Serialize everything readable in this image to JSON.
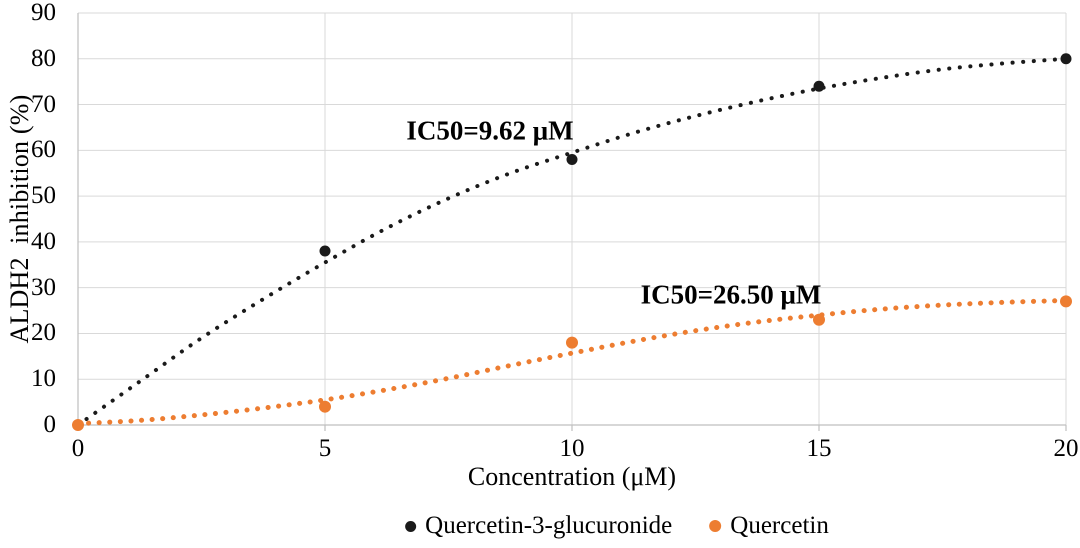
{
  "chart_data": {
    "type": "scatter",
    "title": "",
    "xlabel": "Concentration (μM)",
    "ylabel": "ALDH2  inhibition (%)",
    "xlim": [
      0,
      20
    ],
    "ylim": [
      0,
      90
    ],
    "xticks": [
      0,
      5,
      10,
      15,
      20
    ],
    "yticks": [
      0,
      10,
      20,
      30,
      40,
      50,
      60,
      70,
      80,
      90
    ],
    "grid": true,
    "grid_color": "#d9d9d9",
    "axis_color": "#bfbfbf",
    "legend_position": "bottom-center",
    "series": [
      {
        "name": "Quercetin-3-glucuronide",
        "color": "#1a1a1a",
        "marker": "circle",
        "marker_radius": 5.5,
        "x": [
          0,
          5,
          10,
          15,
          20
        ],
        "y": [
          0,
          38,
          58,
          74,
          80
        ],
        "annotation": "IC50=9.62 μM",
        "trend_style": "dotted",
        "trend_dot_size": 4,
        "trend": [
          [
            0,
            0
          ],
          [
            1.25,
            9.5
          ],
          [
            2.5,
            19
          ],
          [
            3.75,
            27.5
          ],
          [
            5,
            35.5
          ],
          [
            6.25,
            43
          ],
          [
            7.5,
            49.5
          ],
          [
            8.75,
            55
          ],
          [
            10,
            59.5
          ],
          [
            11.25,
            63.8
          ],
          [
            12.5,
            67.5
          ],
          [
            13.75,
            70.7
          ],
          [
            15,
            73.5
          ],
          [
            16.25,
            75.8
          ],
          [
            17.5,
            77.7
          ],
          [
            18.75,
            79
          ],
          [
            20,
            80
          ]
        ]
      },
      {
        "name": "Quercetin",
        "color": "#ed7d31",
        "marker": "circle",
        "marker_radius": 6,
        "x": [
          0,
          5,
          10,
          15,
          20
        ],
        "y": [
          0,
          4,
          18,
          23,
          27
        ],
        "annotation": "IC50=26.50 μM",
        "trend_style": "dotted",
        "trend_dot_size": 5,
        "trend": [
          [
            0,
            0.3
          ],
          [
            1.25,
            1
          ],
          [
            2.5,
            2.2
          ],
          [
            3.75,
            3.7
          ],
          [
            5,
            5.5
          ],
          [
            6.25,
            7.7
          ],
          [
            7.5,
            10.2
          ],
          [
            8.75,
            13
          ],
          [
            10,
            15.7
          ],
          [
            11.25,
            18.3
          ],
          [
            12.5,
            20.6
          ],
          [
            13.75,
            22.5
          ],
          [
            15,
            24
          ],
          [
            16.25,
            25.3
          ],
          [
            17.5,
            26.2
          ],
          [
            18.75,
            26.8
          ],
          [
            20,
            27.2
          ]
        ]
      }
    ]
  }
}
